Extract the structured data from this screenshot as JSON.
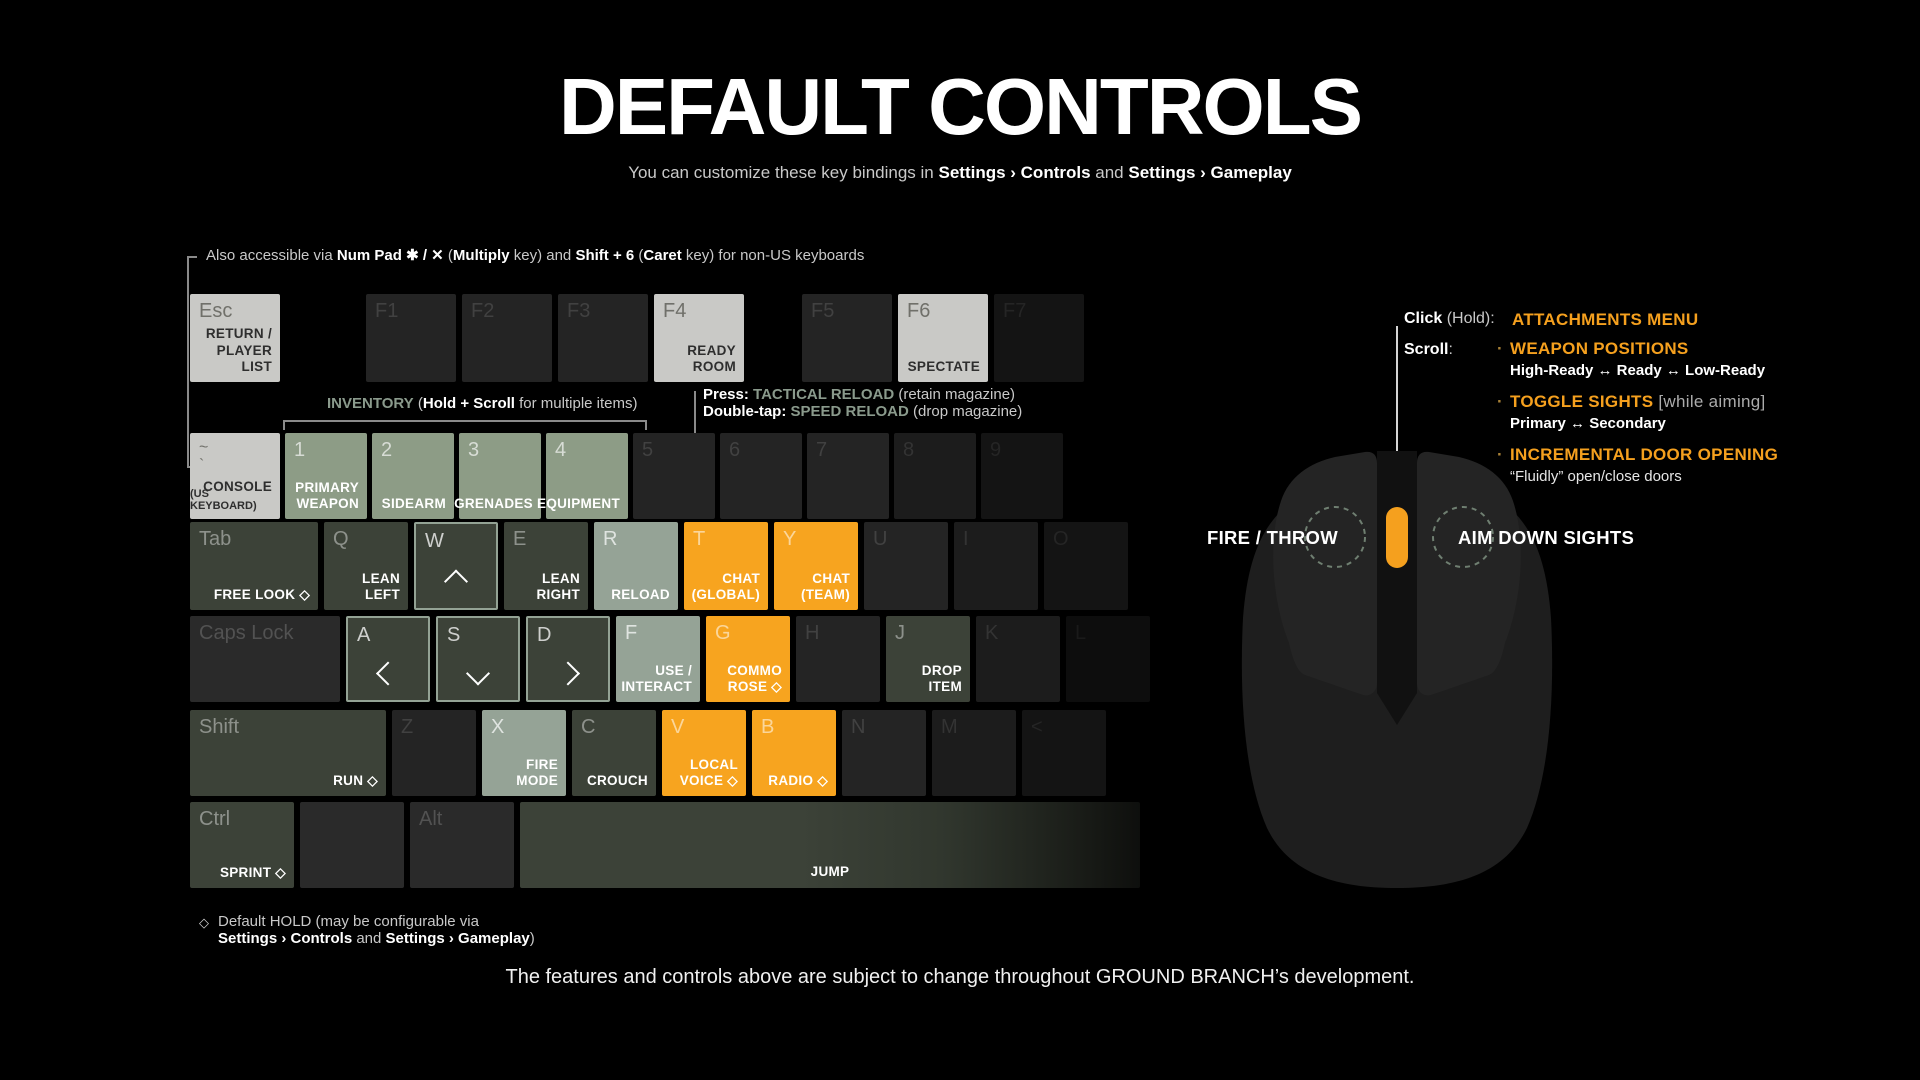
{
  "colors": {
    "orange": "#F5A01E",
    "sage": "#8A9A8C",
    "white": "#FFFFFF",
    "gray": "#C9C9C9",
    "dim": "#ABABAB",
    "key_orange": "#F7A41F",
    "key_sage": "#8D9C86",
    "key_sage_light": "#95A396",
    "key_olive": "#3C4238",
    "key_light": "#C9C9C6"
  },
  "title": "DEFAULT CONTROLS",
  "subtitle": [
    {
      "t": "You can customize these key bindings in "
    },
    {
      "t": "Settings › Controls",
      "b": true
    },
    {
      "t": " and "
    },
    {
      "t": "Settings › Gameplay",
      "b": true
    }
  ],
  "numpad_note": [
    {
      "t": "Also accessible via "
    },
    {
      "t": "Num Pad ✱ / ✕",
      "b": true
    },
    {
      "t": " ("
    },
    {
      "t": "Multiply",
      "b": true
    },
    {
      "t": " key) and "
    },
    {
      "t": "Shift + 6",
      "b": true
    },
    {
      "t": " ("
    },
    {
      "t": "Caret",
      "b": true
    },
    {
      "t": " key) for non-US keyboards"
    }
  ],
  "inventory_note": [
    {
      "t": "INVENTORY",
      "b": true,
      "c": "sage"
    },
    {
      "t": " ("
    },
    {
      "t": "Hold + Scroll",
      "b": true
    },
    {
      "t": " for multiple items)"
    }
  ],
  "reload_note": {
    "line1": [
      {
        "t": "Press:",
        "b": true
      },
      {
        "t": "  "
      },
      {
        "t": "TACTICAL RELOAD",
        "b": true,
        "c": "sage"
      },
      {
        "t": " (retain magazine)"
      }
    ],
    "line2": [
      {
        "t": "Double-tap:",
        "b": true
      },
      {
        "t": "  "
      },
      {
        "t": "SPEED RELOAD",
        "b": true,
        "c": "sage"
      },
      {
        "t": " (drop magazine)"
      }
    ]
  },
  "keyboard": {
    "esc": {
      "key": "Esc",
      "label": "RETURN /\nPLAYER LIST"
    },
    "f1": {
      "key": "F1"
    },
    "f2": {
      "key": "F2"
    },
    "f3": {
      "key": "F3"
    },
    "f4": {
      "key": "F4",
      "label": "READY\nROOM"
    },
    "f5": {
      "key": "F5"
    },
    "f6": {
      "key": "F6",
      "label": "SPECTATE"
    },
    "f7": {
      "key": "F7"
    },
    "tilde": {
      "key": "~\n`",
      "label": "CONSOLE",
      "sub": "(US KEYBOARD)"
    },
    "n1": {
      "key": "1",
      "label": "PRIMARY\nWEAPON"
    },
    "n2": {
      "key": "2",
      "label": "SIDEARM"
    },
    "n3": {
      "key": "3",
      "label": "GRENADES"
    },
    "n4": {
      "key": "4",
      "label": "EQUIPMENT"
    },
    "n5": {
      "key": "5"
    },
    "n6": {
      "key": "6"
    },
    "n7": {
      "key": "7"
    },
    "n8": {
      "key": "8"
    },
    "n9": {
      "key": "9"
    },
    "tab": {
      "key": "Tab",
      "label": "FREE LOOK ◇"
    },
    "q": {
      "key": "Q",
      "label": "LEAN\nLEFT"
    },
    "w": {
      "key": "W",
      "arrow": "up"
    },
    "e": {
      "key": "E",
      "label": "LEAN\nRIGHT"
    },
    "r": {
      "key": "R",
      "label": "RELOAD"
    },
    "t": {
      "key": "T",
      "label": "CHAT\n(GLOBAL)"
    },
    "y": {
      "key": "Y",
      "label": "CHAT\n(TEAM)"
    },
    "u": {
      "key": "U"
    },
    "i": {
      "key": "I"
    },
    "o": {
      "key": "O"
    },
    "caps": {
      "key": "Caps Lock"
    },
    "a": {
      "key": "A",
      "arrow": "left"
    },
    "s": {
      "key": "S",
      "arrow": "down"
    },
    "d": {
      "key": "D",
      "arrow": "right"
    },
    "f": {
      "key": "F",
      "label": "USE /\nINTERACT"
    },
    "g": {
      "key": "G",
      "label": "COMMO\nROSE ◇"
    },
    "h": {
      "key": "H"
    },
    "j": {
      "key": "J",
      "label": "DROP\nITEM"
    },
    "k": {
      "key": "K"
    },
    "l": {
      "key": "L"
    },
    "shift": {
      "key": "Shift",
      "label": "RUN ◇"
    },
    "z": {
      "key": "Z"
    },
    "x": {
      "key": "X",
      "label": "FIRE\nMODE"
    },
    "c": {
      "key": "C",
      "label": "CROUCH"
    },
    "v": {
      "key": "V",
      "label": "LOCAL\nVOICE ◇"
    },
    "b": {
      "key": "B",
      "label": "RADIO ◇"
    },
    "n": {
      "key": "N"
    },
    "m": {
      "key": "M"
    },
    "comma": {
      "key": "<"
    },
    "ctrl": {
      "key": "Ctrl",
      "label": "SPRINT ◇"
    },
    "win": {
      "key": ""
    },
    "alt": {
      "key": "Alt"
    },
    "space": {
      "key": "",
      "label": "JUMP"
    }
  },
  "mouse": {
    "click_label": [
      {
        "t": "Click",
        "b": true
      },
      {
        "t": " (Hold):"
      }
    ],
    "click_value": "ATTACHMENTS MENU",
    "scroll_label": [
      {
        "t": "Scroll",
        "b": true
      },
      {
        "t": ":"
      }
    ],
    "bullet": "·",
    "items": [
      {
        "title": [
          {
            "t": "WEAPON POSITIONS",
            "b": true,
            "c": "orange"
          }
        ],
        "desc": [
          {
            "t": "High-Ready ↔ Ready ↔ Low-Ready",
            "b": true
          }
        ]
      },
      {
        "title": [
          {
            "t": "TOGGLE SIGHTS",
            "b": true,
            "c": "orange"
          },
          {
            "t": " [while aiming]",
            "c": "dim"
          }
        ],
        "desc": [
          {
            "t": "Primary ↔ Secondary",
            "b": true
          }
        ]
      },
      {
        "title": [
          {
            "t": "INCREMENTAL DOOR OPENING",
            "b": true,
            "c": "orange"
          }
        ],
        "desc": [
          {
            "t": "“Fluidly” open/close doors"
          }
        ]
      }
    ],
    "left_button_label": "FIRE / THROW",
    "right_button_label": "AIM DOWN SIGHTS"
  },
  "hold_note": {
    "symbol": "◇",
    "line1": [
      {
        "t": "Default HOLD (may be configurable via"
      }
    ],
    "line2": [
      {
        "t": "Settings › Controls",
        "b": true
      },
      {
        "t": " and "
      },
      {
        "t": "Settings › Gameplay",
        "b": true
      },
      {
        "t": ")"
      }
    ]
  },
  "disclaimer": "The features and controls above are subject to change throughout GROUND BRANCH’s development."
}
